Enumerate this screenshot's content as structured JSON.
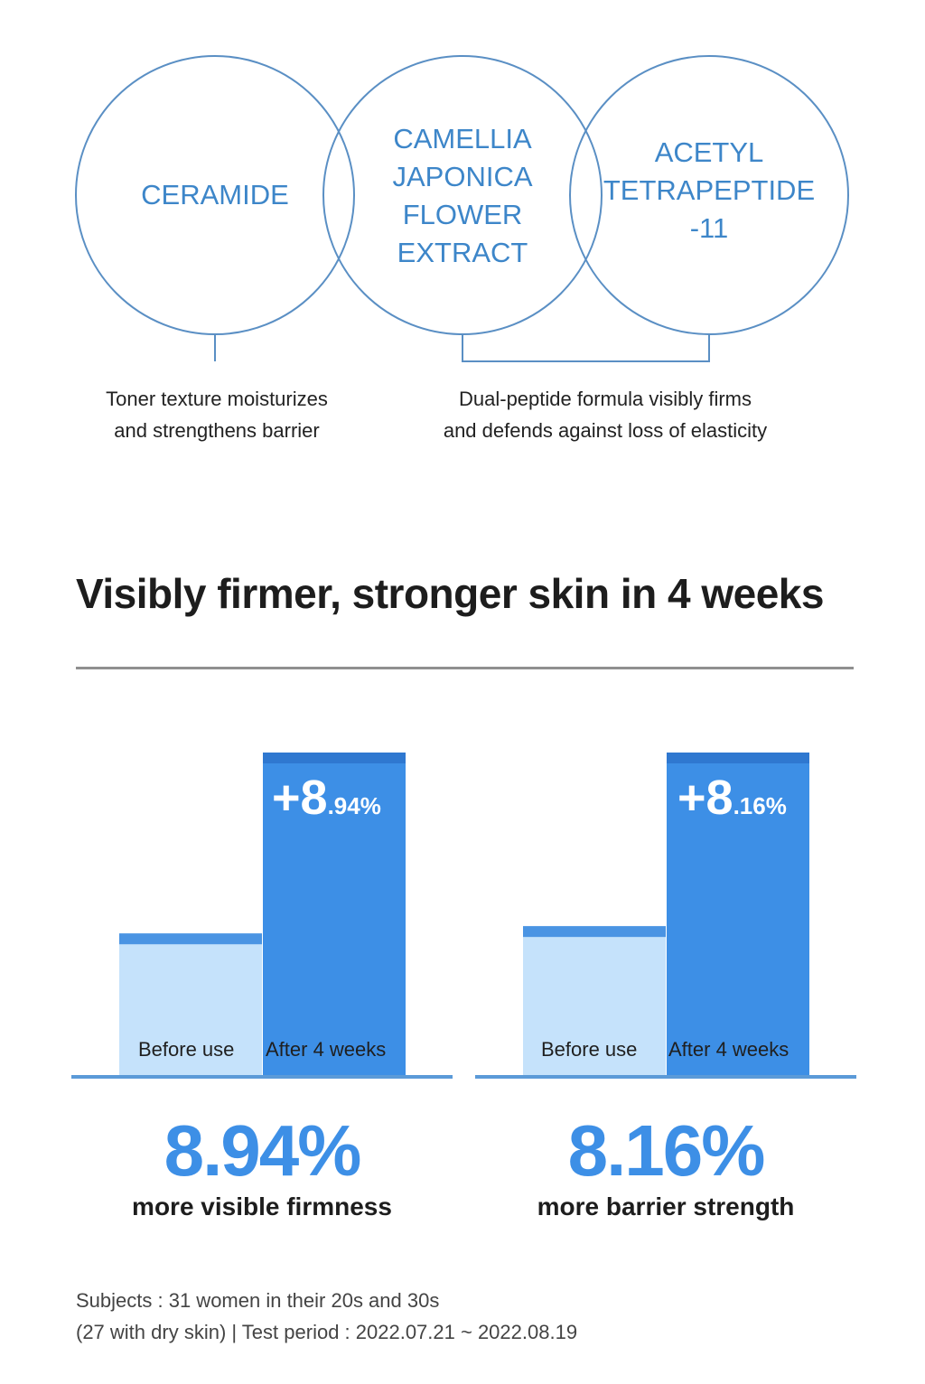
{
  "ingredients": [
    {
      "name": "CERAMIDE"
    },
    {
      "name": "CAMELLIA\nJAPONICA\nFLOWER\nEXTRACT"
    },
    {
      "name": "ACETYL\nTETRAPEPTIDE\n-11"
    }
  ],
  "captions": {
    "left": "Toner texture moisturizes\nand strengthens barrier",
    "right": "Dual-peptide formula visibly firms\nand defends against loss of elasticity"
  },
  "headline": "Visibly firmer, stronger skin in 4 weeks",
  "colors": {
    "accent": "#3d8fe6",
    "bar_after": "#3d8fe6",
    "bar_after_cap": "#2f78d0",
    "bar_before": "#c5e2fb",
    "bar_before_cap": "#4a94e3",
    "circle_stroke": "#5a8fc4"
  },
  "chart_data": [
    {
      "type": "bar",
      "categories": [
        "Before use",
        "After 4 weeks"
      ],
      "values": [
        100,
        108.94
      ],
      "badge": {
        "big": "+8",
        "small": ".94%"
      },
      "stat": "8.94%",
      "stat_caption": "more visible firmness"
    },
    {
      "type": "bar",
      "categories": [
        "Before use",
        "After 4 weeks"
      ],
      "values": [
        100,
        108.16
      ],
      "badge": {
        "big": "+8",
        "small": ".16%"
      },
      "stat": "8.16%",
      "stat_caption": "more barrier strength"
    }
  ],
  "footnote": {
    "line1": "Subjects : 31 women in their 20s and 30s",
    "line2": "(27 with dry skin) | Test period : 2022.07.21 ~ 2022.08.19"
  }
}
